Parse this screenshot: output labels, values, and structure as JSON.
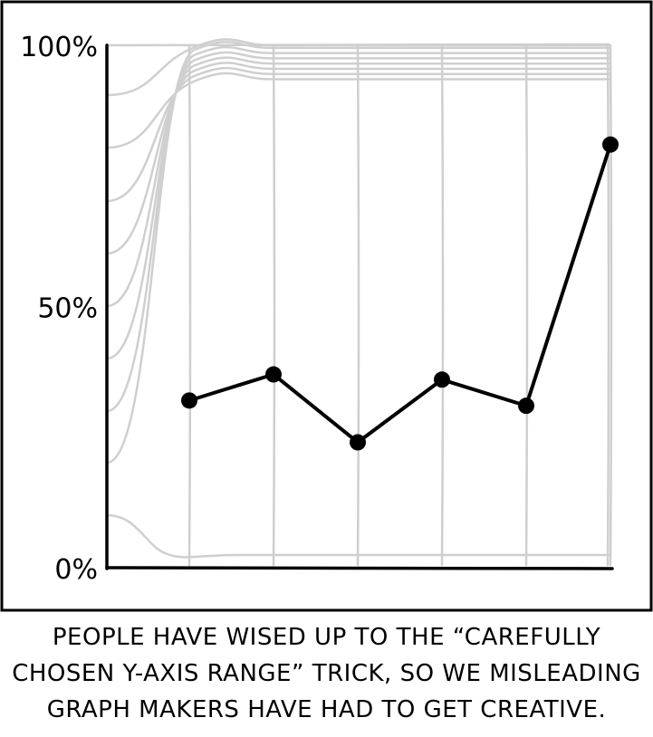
{
  "chart_data": {
    "type": "line",
    "ylim": [
      0,
      100
    ],
    "yticks": [
      0,
      50,
      100
    ],
    "ytick_labels": [
      "0%",
      "50%",
      "100%"
    ],
    "x": [
      1,
      2,
      3,
      4,
      5,
      6
    ],
    "series": [
      {
        "values": [
          32,
          37,
          24,
          36,
          31,
          81
        ]
      }
    ],
    "gridlines": true,
    "colors": {
      "line": "#000000",
      "grid": "#cfcfcf",
      "frame": "#000000"
    }
  },
  "caption": {
    "line1": "PEOPLE HAVE WISED UP TO THE “CAREFULLY",
    "line2": "CHOSEN Y-AXIS RANGE” TRICK, SO WE MISLEADING",
    "line3": "GRAPH MAKERS HAVE HAD TO GET CREATIVE."
  }
}
